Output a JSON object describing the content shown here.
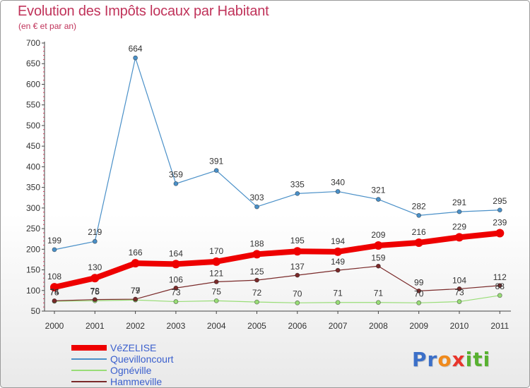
{
  "title": "Evolution des Impôts locaux par Habitant",
  "subtitle": "(en € et par an)",
  "logo": {
    "letters": [
      "P",
      "r",
      "o",
      "x",
      "i",
      "t",
      "i"
    ],
    "colors": [
      "#3b6fc8",
      "#3b6fc8",
      "#f08a1c",
      "#e8352c",
      "#58b130",
      "#58b130",
      "#58b130"
    ]
  },
  "chart_data": {
    "type": "line",
    "title": "Evolution des Impôts locaux par Habitant",
    "subtitle": "(en € et par an)",
    "x": [
      "2000",
      "2001",
      "2002",
      "2003",
      "2004",
      "2005",
      "2006",
      "2007",
      "2008",
      "2009",
      "2010",
      "2011"
    ],
    "ylim": [
      50,
      700
    ],
    "yticks": [
      50,
      100,
      150,
      200,
      250,
      300,
      350,
      400,
      450,
      500,
      550,
      600,
      650,
      700
    ],
    "grid": false,
    "legend_position": "bottom-left",
    "series": [
      {
        "name": "VéZELISE",
        "color": "#ee0000",
        "values": [
          108,
          130,
          166,
          164,
          170,
          188,
          195,
          194,
          209,
          216,
          229,
          239
        ],
        "labels": [
          "108",
          "130",
          "166",
          "164",
          "170",
          "188",
          "195",
          "194",
          "209",
          "216",
          "229",
          "239"
        ]
      },
      {
        "name": "Quevilloncourt",
        "color": "#4a90c8",
        "values": [
          199,
          219,
          664,
          359,
          391,
          303,
          335,
          340,
          321,
          282,
          291,
          295
        ],
        "labels": [
          "199",
          "219",
          "664",
          "359",
          "391",
          "303",
          "335",
          "340",
          "321",
          "282",
          "291",
          "295"
        ]
      },
      {
        "name": "Ognéville",
        "color": "#99dd77",
        "values": [
          74,
          75,
          77,
          73,
          75,
          72,
          70,
          71,
          71,
          70,
          73,
          88
        ],
        "labels": [
          "74",
          "75",
          "77",
          "73",
          "75",
          "72",
          "70",
          "71",
          "71",
          "70",
          "73",
          "88"
        ]
      },
      {
        "name": "Hammeville",
        "color": "#7a2a2a",
        "values": [
          75,
          78,
          79,
          106,
          121,
          125,
          137,
          149,
          159,
          99,
          104,
          112
        ],
        "labels": [
          "75",
          "78",
          "79",
          "106",
          "121",
          "125",
          "137",
          "149",
          "159",
          "99",
          "104",
          "112"
        ]
      }
    ]
  }
}
